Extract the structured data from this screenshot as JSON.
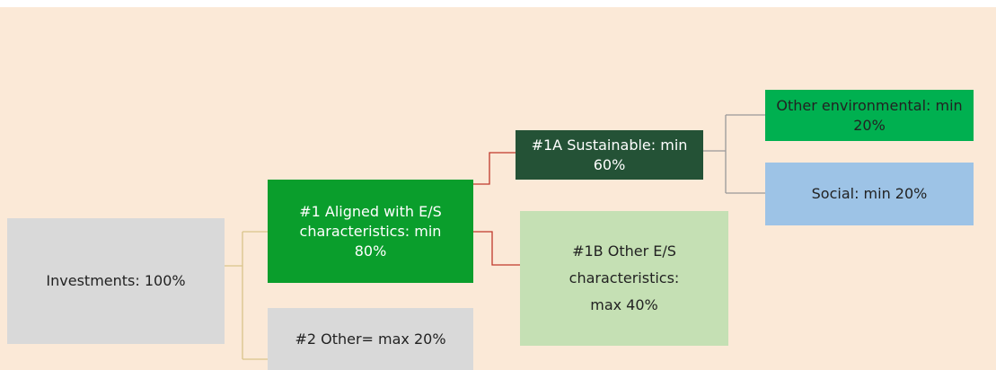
{
  "nodes": [
    {
      "label": "Investments: 100%"
    },
    {
      "label": "#1 Aligned with E/S characteristics: min 80%"
    },
    {
      "label": "#2 Other= max 20%"
    },
    {
      "label": "#1A Sustainable: min 60%"
    },
    {
      "label": "#1B Other E/S characteristics: max 40%"
    },
    {
      "label": "Other environmental: min 20%"
    },
    {
      "label": "Social: min 20%"
    }
  ]
}
